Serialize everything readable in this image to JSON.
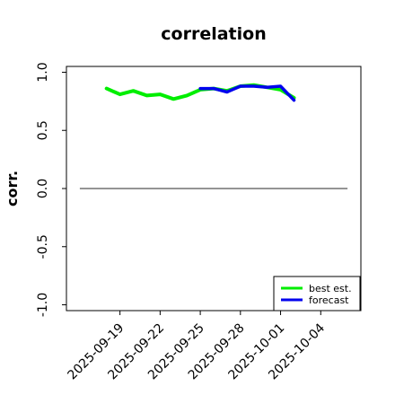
{
  "chart_data": {
    "type": "line",
    "title": "correlation",
    "xlabel": "",
    "ylabel": "corr.",
    "ylim": [
      -1.05,
      1.05
    ],
    "yticks": [
      -1.0,
      -0.5,
      0.0,
      0.5,
      1.0
    ],
    "ytick_labels": [
      "-1.0",
      "-0.5",
      "0.0",
      "0.5",
      "1.0"
    ],
    "xlim": [
      "2025-09-15",
      "2025-10-07"
    ],
    "xticks": [
      "2025-09-19",
      "2025-09-22",
      "2025-09-25",
      "2025-09-28",
      "2025-10-01",
      "2025-10-04"
    ],
    "xtick_labels": [
      "2025-09-19",
      "2025-09-22",
      "2025-09-25",
      "2025-09-28",
      "2025-10-01",
      "2025-10-04"
    ],
    "highlighted_tick": "2025-09-25",
    "highlight_color": "#228b22",
    "reference_line": {
      "y": 0.0,
      "x_start": "2025-09-16",
      "x_end": "2025-10-06",
      "color": "#555555"
    },
    "legend_position": "lower-right",
    "series": [
      {
        "name": "best est.",
        "color": "#00ee00",
        "x": [
          "2025-09-18",
          "2025-09-19",
          "2025-09-20",
          "2025-09-21",
          "2025-09-22",
          "2025-09-23",
          "2025-09-24",
          "2025-09-25",
          "2025-09-26",
          "2025-09-27",
          "2025-09-28",
          "2025-09-29",
          "2025-09-30",
          "2025-10-01",
          "2025-10-02"
        ],
        "values": [
          0.86,
          0.81,
          0.84,
          0.8,
          0.81,
          0.77,
          0.8,
          0.85,
          0.86,
          0.84,
          0.88,
          0.89,
          0.87,
          0.85,
          0.78
        ]
      },
      {
        "name": "forecast",
        "color": "#0000ee",
        "x": [
          "2025-09-25",
          "2025-09-26",
          "2025-09-27",
          "2025-09-28",
          "2025-09-29",
          "2025-09-30",
          "2025-10-01",
          "2025-10-02"
        ],
        "values": [
          0.86,
          0.86,
          0.83,
          0.88,
          0.88,
          0.87,
          0.88,
          0.76
        ]
      }
    ]
  }
}
